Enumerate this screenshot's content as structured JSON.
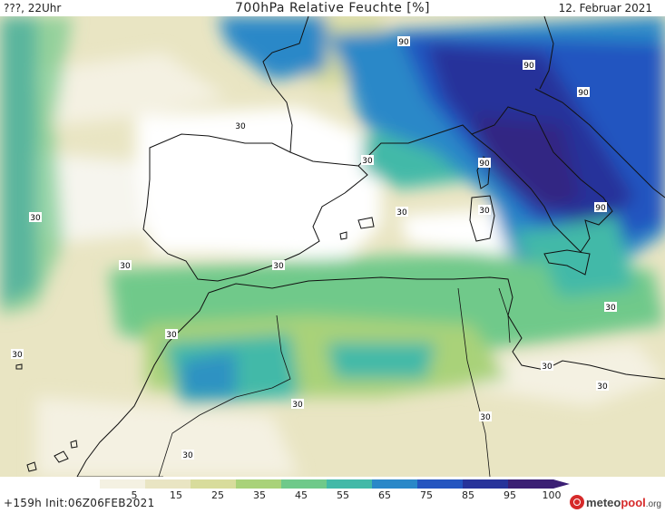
{
  "header": {
    "left": "???, 22Uhr",
    "title": "700hPa Relative Feuchte [%]",
    "right": "12. Februar 2021"
  },
  "footer": {
    "run_info": "+159h  Init:06Z06FEB2021",
    "logo": {
      "brand": "meteo",
      "brand_accent": "pool",
      "tld": ".org"
    }
  },
  "colorbar": {
    "ticks": [
      "5",
      "15",
      "25",
      "35",
      "45",
      "55",
      "65",
      "75",
      "85",
      "95",
      "100"
    ],
    "colors": [
      "#ffffff",
      "#f4f1e2",
      "#e9e5c3",
      "#d8dc9c",
      "#a9d279",
      "#6fc98a",
      "#42b9a8",
      "#2a88c8",
      "#2455c0",
      "#27339a",
      "#3b1f74"
    ]
  },
  "contour_labels": [
    "90",
    "90",
    "90",
    "90",
    "90",
    "30",
    "30",
    "30",
    "30",
    "30",
    "30",
    "30",
    "30",
    "30",
    "30",
    "30",
    "30",
    "30",
    "30",
    "30"
  ],
  "map": {
    "region": "Iberia, Northwest Africa, Western Mediterranean"
  }
}
